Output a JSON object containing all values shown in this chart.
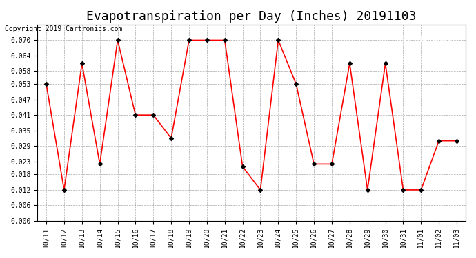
{
  "title": "Evapotranspiration per Day (Inches) 20191103",
  "copyright": "Copyright 2019 Cartronics.com",
  "x_labels": [
    "10/11",
    "10/12",
    "10/13",
    "10/14",
    "10/15",
    "10/16",
    "10/17",
    "10/18",
    "10/19",
    "10/20",
    "10/21",
    "10/22",
    "10/23",
    "10/24",
    "10/25",
    "10/26",
    "10/27",
    "10/28",
    "10/29",
    "10/30",
    "10/31",
    "11/01",
    "11/02",
    "11/03"
  ],
  "y_values": [
    0.053,
    0.012,
    0.061,
    0.022,
    0.07,
    0.041,
    0.041,
    0.032,
    0.07,
    0.07,
    0.07,
    0.021,
    0.012,
    0.07,
    0.053,
    0.022,
    0.022,
    0.061,
    0.012,
    0.061,
    0.012,
    0.012,
    0.031,
    0.031
  ],
  "ylim": [
    0.0,
    0.076
  ],
  "yticks": [
    0.0,
    0.006,
    0.012,
    0.018,
    0.023,
    0.029,
    0.035,
    0.041,
    0.047,
    0.053,
    0.058,
    0.064,
    0.07
  ],
  "line_color": "red",
  "marker_color": "black",
  "bg_color": "white",
  "grid_color": "#aaaaaa",
  "title_fontsize": 13,
  "copyright_fontsize": 7,
  "legend_bg_color": "red",
  "legend_text_color": "white"
}
